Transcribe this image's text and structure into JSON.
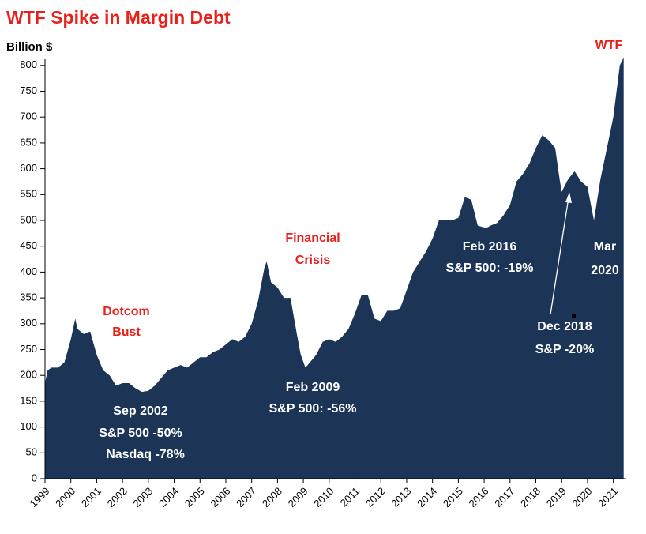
{
  "chart_data": {
    "type": "area",
    "title": "WTF Spike in Margin Debt",
    "y_label": "Billion $",
    "color": "#1c3557",
    "x": [
      1999.0,
      1999.1,
      1999.25,
      1999.5,
      1999.75,
      2000.0,
      2000.17,
      2000.25,
      2000.5,
      2000.75,
      2001.0,
      2001.25,
      2001.5,
      2001.75,
      2002.0,
      2002.25,
      2002.5,
      2002.75,
      2003.0,
      2003.25,
      2003.5,
      2003.75,
      2004.0,
      2004.25,
      2004.5,
      2004.75,
      2005.0,
      2005.25,
      2005.5,
      2005.75,
      2006.0,
      2006.25,
      2006.5,
      2006.75,
      2007.0,
      2007.25,
      2007.5,
      2007.58,
      2007.75,
      2008.0,
      2008.25,
      2008.5,
      2008.75,
      2008.9,
      2009.08,
      2009.25,
      2009.5,
      2009.75,
      2010.0,
      2010.25,
      2010.5,
      2010.75,
      2011.0,
      2011.25,
      2011.5,
      2011.75,
      2012.0,
      2012.25,
      2012.5,
      2012.75,
      2013.0,
      2013.25,
      2013.5,
      2013.75,
      2014.0,
      2014.25,
      2014.5,
      2014.75,
      2015.0,
      2015.25,
      2015.5,
      2015.75,
      2016.08,
      2016.25,
      2016.5,
      2016.75,
      2017.0,
      2017.25,
      2017.5,
      2017.75,
      2018.0,
      2018.25,
      2018.5,
      2018.75,
      2018.92,
      2019.0,
      2019.25,
      2019.5,
      2019.75,
      2020.0,
      2020.17,
      2020.25,
      2020.5,
      2020.75,
      2021.0,
      2021.25,
      2021.4
    ],
    "values": [
      185,
      210,
      215,
      215,
      225,
      270,
      310,
      290,
      280,
      285,
      240,
      210,
      200,
      180,
      185,
      185,
      175,
      168,
      170,
      180,
      195,
      210,
      215,
      220,
      215,
      225,
      235,
      235,
      245,
      250,
      260,
      270,
      265,
      275,
      300,
      345,
      410,
      420,
      380,
      370,
      350,
      350,
      280,
      240,
      215,
      225,
      240,
      265,
      270,
      265,
      275,
      290,
      320,
      355,
      355,
      310,
      305,
      325,
      325,
      330,
      365,
      400,
      420,
      440,
      465,
      500,
      500,
      500,
      505,
      545,
      540,
      490,
      485,
      490,
      495,
      510,
      530,
      575,
      590,
      610,
      640,
      665,
      655,
      640,
      580,
      555,
      580,
      595,
      575,
      565,
      520,
      500,
      580,
      640,
      700,
      800,
      815
    ],
    "xlim": [
      1999,
      2021.5
    ],
    "xticks": [
      1999,
      2000,
      2001,
      2002,
      2003,
      2004,
      2005,
      2006,
      2007,
      2008,
      2009,
      2010,
      2011,
      2012,
      2013,
      2014,
      2015,
      2016,
      2017,
      2018,
      2019,
      2020,
      2021
    ],
    "ylim": [
      0,
      830
    ],
    "yticks": [
      0,
      50,
      100,
      150,
      200,
      250,
      300,
      350,
      400,
      450,
      500,
      550,
      600,
      650,
      700,
      750,
      800
    ],
    "annotations": [
      {
        "lines": [
          "Dotcom",
          "Bust"
        ],
        "color": "#e8201a"
      },
      {
        "lines": [
          "Financial",
          "Crisis"
        ],
        "color": "#e8201a"
      },
      {
        "lines": [
          "WTF"
        ],
        "color": "#e8201a"
      },
      {
        "lines": [
          "Sep 2002",
          "S&P 500 -50%",
          "Nasdaq -78%"
        ],
        "color": "#ffffff"
      },
      {
        "lines": [
          "Feb 2009",
          "S&P 500: -56%"
        ],
        "color": "#ffffff"
      },
      {
        "lines": [
          "Feb 2016",
          "S&P 500: -19%"
        ],
        "color": "#ffffff"
      },
      {
        "lines": [
          "Mar",
          "2020"
        ],
        "color": "#ffffff"
      },
      {
        "lines": [
          "Dec 2018",
          "S&P -20%"
        ],
        "color": "#ffffff"
      }
    ]
  }
}
